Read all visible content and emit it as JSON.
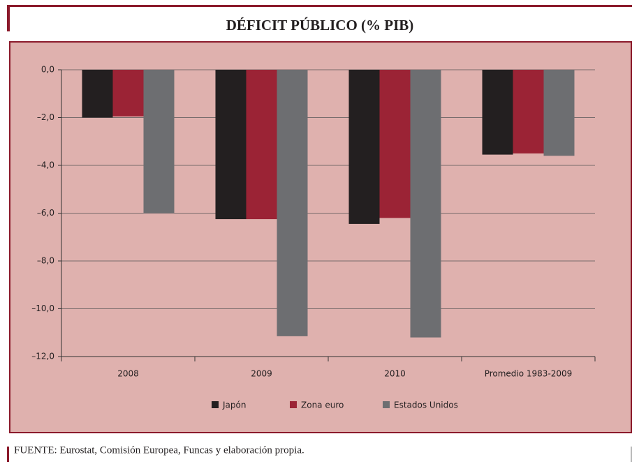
{
  "chart_data": {
    "type": "bar",
    "title": "DÉFICIT PÚBLICO (% PIB)",
    "categories": [
      "2008",
      "2009",
      "2010",
      "Promedio 1983-2009"
    ],
    "series": [
      {
        "name": "Japón",
        "color": "#231f20",
        "values": [
          -2.0,
          -6.25,
          -6.45,
          -3.55
        ]
      },
      {
        "name": "Zona euro",
        "color": "#9b2335",
        "values": [
          -1.95,
          -6.25,
          -6.2,
          -3.5
        ]
      },
      {
        "name": "Estados Unidos",
        "color": "#6d6e71",
        "values": [
          -6.0,
          -11.15,
          -11.2,
          -3.6
        ]
      }
    ],
    "ylim": [
      -12,
      0
    ],
    "yticks": [
      {
        "value": 0,
        "label": "0,0"
      },
      {
        "value": -2,
        "label": "–2,0"
      },
      {
        "value": -4,
        "label": "–4,0"
      },
      {
        "value": -6,
        "label": "–6,0"
      },
      {
        "value": -8,
        "label": "–8,0"
      },
      {
        "value": -10,
        "label": "–10,0"
      },
      {
        "value": -12,
        "label": "–12,0"
      }
    ],
    "grid": true,
    "legend": "bottom",
    "source": "FUENTE: Eurostat, Comisión Europea, Funcas y elaboración propia."
  }
}
